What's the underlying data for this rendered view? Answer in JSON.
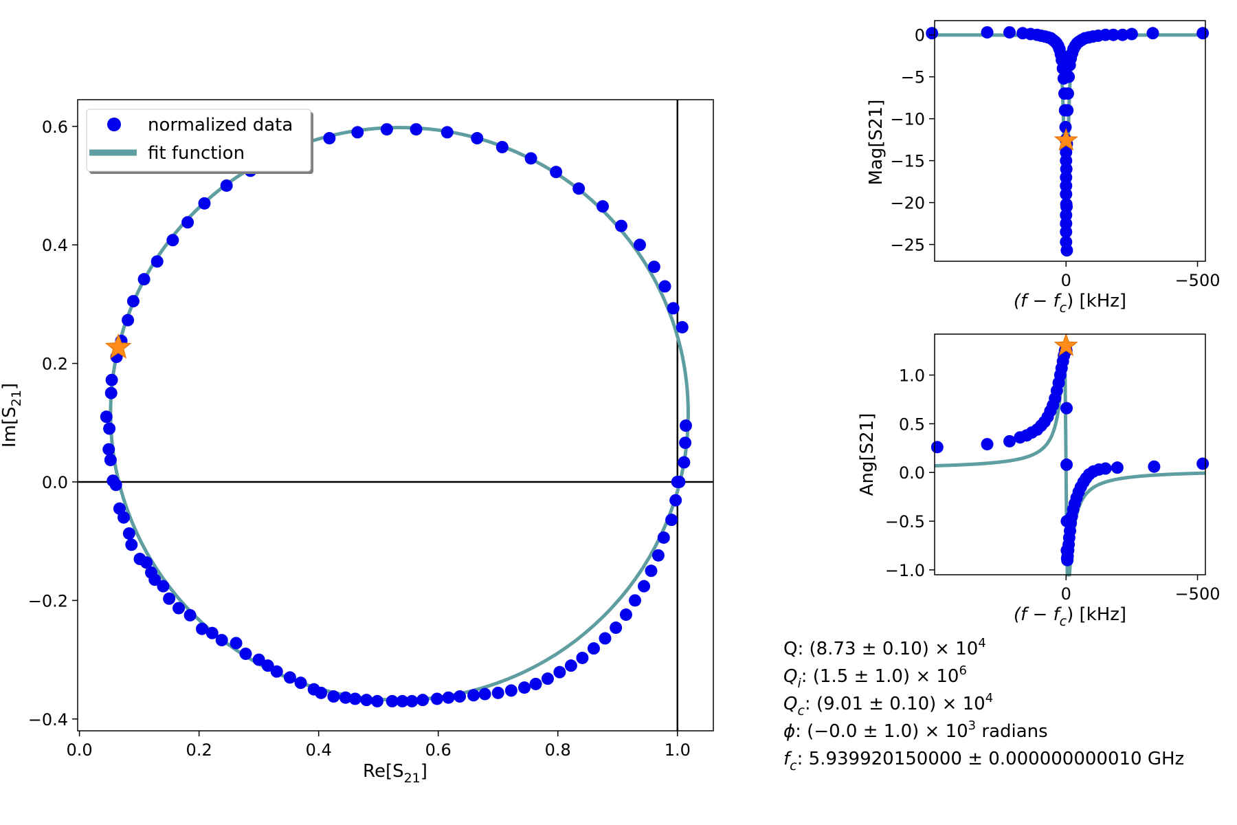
{
  "colors": {
    "data": "#0000ee",
    "fit": "#5f9ea0",
    "marker": "#ff8c1a",
    "axes": "#000000"
  },
  "chart_data": [
    {
      "id": "circle",
      "type": "scatter",
      "xlabel_base": "Re[S",
      "xlabel_sub": "21",
      "xlabel_end": "]",
      "ylabel_base": "Im[S",
      "ylabel_sub": "21",
      "ylabel_end": "]",
      "xlim": [
        -0.003,
        1.06
      ],
      "ylim": [
        -0.42,
        0.645
      ],
      "xticks": [
        0.0,
        0.2,
        0.4,
        0.6,
        0.8,
        1.0
      ],
      "xtick_labels": [
        "0.0",
        "0.2",
        "0.4",
        "0.6",
        "0.8",
        "1.0"
      ],
      "yticks": [
        -0.4,
        -0.2,
        0.0,
        0.2,
        0.4,
        0.6
      ],
      "ytick_labels": [
        "−0.4",
        "−0.2",
        "0.0",
        "0.2",
        "0.4",
        "0.6"
      ],
      "legend": {
        "position": "top-left",
        "entries": [
          "normalized data",
          "fit function"
        ]
      },
      "reference_lines": {
        "x": 1.0,
        "y": 0.0
      },
      "fit_circle": {
        "center": [
          0.535,
          0.115
        ],
        "radius": 0.483
      },
      "star": [
        0.065,
        0.227
      ],
      "series": [
        {
          "name": "normalized data",
          "points": [
            [
              1.0,
              0.0
            ],
            [
              0.997,
              -0.031
            ],
            [
              0.99,
              -0.064
            ],
            [
              0.977,
              -0.094
            ],
            [
              0.968,
              -0.124
            ],
            [
              0.956,
              -0.15
            ],
            [
              0.944,
              -0.176
            ],
            [
              0.929,
              -0.2
            ],
            [
              0.914,
              -0.224
            ],
            [
              0.897,
              -0.246
            ],
            [
              0.879,
              -0.264
            ],
            [
              0.86,
              -0.281
            ],
            [
              0.841,
              -0.297
            ],
            [
              0.822,
              -0.31
            ],
            [
              0.803,
              -0.321
            ],
            [
              0.783,
              -0.332
            ],
            [
              0.763,
              -0.341
            ],
            [
              0.744,
              -0.347
            ],
            [
              0.722,
              -0.352
            ],
            [
              0.7,
              -0.356
            ],
            [
              0.678,
              -0.358
            ],
            [
              0.659,
              -0.36
            ],
            [
              0.636,
              -0.362
            ],
            [
              0.617,
              -0.364
            ],
            [
              0.598,
              -0.366
            ],
            [
              0.574,
              -0.368
            ],
            [
              0.556,
              -0.37
            ],
            [
              0.54,
              -0.37
            ],
            [
              0.523,
              -0.37
            ],
            [
              0.498,
              -0.37
            ],
            [
              0.48,
              -0.368
            ],
            [
              0.461,
              -0.366
            ],
            [
              0.445,
              -0.364
            ],
            [
              0.425,
              -0.362
            ],
            [
              0.404,
              -0.356
            ],
            [
              0.392,
              -0.35
            ],
            [
              0.37,
              -0.339
            ],
            [
              0.352,
              -0.33
            ],
            [
              0.33,
              -0.32
            ],
            [
              0.315,
              -0.31
            ],
            [
              0.3,
              -0.3
            ],
            [
              0.278,
              -0.29
            ],
            [
              0.262,
              -0.272
            ],
            [
              0.238,
              -0.267
            ],
            [
              0.222,
              -0.255
            ],
            [
              0.205,
              -0.248
            ],
            [
              0.185,
              -0.225
            ],
            [
              0.166,
              -0.213
            ],
            [
              0.15,
              -0.197
            ],
            [
              0.14,
              -0.176
            ],
            [
              0.126,
              -0.165
            ],
            [
              0.12,
              -0.153
            ],
            [
              0.112,
              -0.136
            ],
            [
              0.101,
              -0.13
            ],
            [
              0.087,
              -0.106
            ],
            [
              0.083,
              -0.087
            ],
            [
              0.074,
              -0.06
            ],
            [
              0.067,
              -0.045
            ],
            [
              0.061,
              -0.005
            ],
            [
              0.056,
              0.002
            ],
            [
              0.052,
              0.037
            ],
            [
              0.049,
              0.055
            ],
            [
              0.05,
              0.09
            ],
            [
              0.045,
              0.11
            ],
            [
              0.053,
              0.15
            ],
            [
              0.054,
              0.172
            ],
            [
              0.062,
              0.211
            ],
            [
              0.07,
              0.238
            ],
            [
              0.081,
              0.273
            ],
            [
              0.09,
              0.305
            ],
            [
              0.108,
              0.342
            ],
            [
              0.13,
              0.372
            ],
            [
              0.156,
              0.408
            ],
            [
              0.181,
              0.438
            ],
            [
              0.209,
              0.47
            ],
            [
              0.246,
              0.5
            ],
            [
              0.286,
              0.525
            ],
            [
              0.33,
              0.55
            ],
            [
              0.37,
              0.57
            ],
            [
              0.418,
              0.58
            ],
            [
              0.465,
              0.59
            ],
            [
              0.514,
              0.595
            ],
            [
              0.563,
              0.595
            ],
            [
              0.615,
              0.59
            ],
            [
              0.665,
              0.58
            ],
            [
              0.707,
              0.565
            ],
            [
              0.755,
              0.546
            ],
            [
              0.797,
              0.523
            ],
            [
              0.835,
              0.495
            ],
            [
              0.875,
              0.465
            ],
            [
              0.906,
              0.432
            ],
            [
              0.937,
              0.4
            ],
            [
              0.961,
              0.363
            ],
            [
              0.979,
              0.33
            ],
            [
              0.993,
              0.293
            ],
            [
              1.008,
              0.261
            ],
            [
              1.014,
              0.095
            ],
            [
              1.013,
              0.066
            ],
            [
              1.011,
              0.033
            ],
            [
              1.003,
              0.0
            ]
          ]
        },
        {
          "name": "fit function"
        }
      ]
    },
    {
      "id": "mag",
      "type": "line",
      "xlabel": "(f − f",
      "xlabel_sub": "c",
      "xlabel_end": ") [kHz]",
      "ylabel": "Mag[S21]",
      "xlim": [
        500,
        -530
      ],
      "ylim": [
        -27,
        1.7
      ],
      "xticks": [
        0,
        -500
      ],
      "xtick_labels": [
        "0",
        "−500"
      ],
      "yticks": [
        0,
        -5,
        -10,
        -15,
        -20,
        -25
      ],
      "ytick_labels": [
        "0",
        "−5",
        "−10",
        "−15",
        "−20",
        "−25"
      ],
      "fit": {
        "depth": -25.7,
        "hwhm": 8
      },
      "star": [
        0,
        -12.6
      ],
      "points": [
        [
          510,
          0.2
        ],
        [
          300,
          0.3
        ],
        [
          215,
          0.3
        ],
        [
          165,
          0.2
        ],
        [
          135,
          0.1
        ],
        [
          110,
          0
        ],
        [
          95,
          -0.1
        ],
        [
          80,
          -0.2
        ],
        [
          68,
          -0.3
        ],
        [
          58,
          -0.4
        ],
        [
          50,
          -0.6
        ],
        [
          42,
          -0.8
        ],
        [
          36,
          -1
        ],
        [
          30,
          -1.3
        ],
        [
          25,
          -1.7
        ],
        [
          20,
          -2.3
        ],
        [
          16,
          -3
        ],
        [
          12,
          -4
        ],
        [
          9,
          -5.2
        ],
        [
          6,
          -7
        ],
        [
          4,
          -9
        ],
        [
          2,
          -11
        ],
        [
          1,
          -12.5
        ],
        [
          0,
          -14
        ],
        [
          0,
          -15
        ],
        [
          -1,
          -16
        ],
        [
          0,
          -17
        ],
        [
          0,
          -18
        ],
        [
          0,
          -19
        ],
        [
          -1,
          -20.2
        ],
        [
          0,
          -21.5
        ],
        [
          0,
          -22.5
        ],
        [
          0,
          -23.5
        ],
        [
          0,
          -24.7
        ],
        [
          -3,
          -25.7
        ],
        [
          -2,
          -20.5
        ],
        [
          -3,
          -13
        ],
        [
          -5,
          -9
        ],
        [
          -7,
          -7
        ],
        [
          -10,
          -5
        ],
        [
          -14,
          -3.6
        ],
        [
          -18,
          -2.8
        ],
        [
          -23,
          -2.2
        ],
        [
          -28,
          -1.7
        ],
        [
          -35,
          -1.3
        ],
        [
          -42,
          -1
        ],
        [
          -50,
          -0.8
        ],
        [
          -60,
          -0.6
        ],
        [
          -72,
          -0.4
        ],
        [
          -86,
          -0.3
        ],
        [
          -102,
          -0.2
        ],
        [
          -122,
          -0.1
        ],
        [
          -150,
          0
        ],
        [
          -180,
          0
        ],
        [
          -215,
          0
        ],
        [
          -250,
          0.1
        ],
        [
          -330,
          0.2
        ],
        [
          -520,
          0.2
        ]
      ]
    },
    {
      "id": "ang",
      "type": "line",
      "xlabel": "(f − f",
      "xlabel_sub": "c",
      "xlabel_end": ") [kHz]",
      "ylabel": "Ang[S21]",
      "xlim": [
        500,
        -530
      ],
      "ylim": [
        -1.05,
        1.42
      ],
      "xticks": [
        0,
        -500
      ],
      "xtick_labels": [
        "0",
        "−500"
      ],
      "yticks": [
        1.0,
        0.5,
        0.0,
        -0.5,
        -1.0
      ],
      "ytick_labels": [
        "1.0",
        "0.5",
        "0.0",
        "−0.5",
        "−1.0"
      ],
      "fit": {
        "amplitude": 1.05,
        "hwhm": 8,
        "bias": 0.03
      },
      "star": [
        0,
        1.3
      ],
      "points": [
        [
          490,
          0.26
        ],
        [
          300,
          0.29
        ],
        [
          215,
          0.32
        ],
        [
          175,
          0.36
        ],
        [
          150,
          0.38
        ],
        [
          130,
          0.41
        ],
        [
          110,
          0.44
        ],
        [
          95,
          0.48
        ],
        [
          82,
          0.52
        ],
        [
          70,
          0.57
        ],
        [
          60,
          0.63
        ],
        [
          50,
          0.69
        ],
        [
          42,
          0.76
        ],
        [
          35,
          0.84
        ],
        [
          28,
          0.92
        ],
        [
          22,
          1.0
        ],
        [
          17,
          1.07
        ],
        [
          12,
          1.14
        ],
        [
          8,
          1.2
        ],
        [
          4,
          1.25
        ],
        [
          1,
          1.28
        ],
        [
          -1,
          1.25
        ],
        [
          -2,
          0.66
        ],
        [
          -2,
          0.08
        ],
        [
          -3,
          -0.5
        ],
        [
          -3,
          -0.8
        ],
        [
          -4,
          -0.88
        ],
        [
          -5,
          -0.9
        ],
        [
          -6,
          -0.86
        ],
        [
          -8,
          -0.8
        ],
        [
          -10,
          -0.74
        ],
        [
          -12,
          -0.67
        ],
        [
          -15,
          -0.6
        ],
        [
          -18,
          -0.52
        ],
        [
          -22,
          -0.45
        ],
        [
          -27,
          -0.38
        ],
        [
          -33,
          -0.32
        ],
        [
          -40,
          -0.26
        ],
        [
          -48,
          -0.2
        ],
        [
          -56,
          -0.15
        ],
        [
          -66,
          -0.1
        ],
        [
          -76,
          -0.06
        ],
        [
          -88,
          -0.02
        ],
        [
          -104,
          0.01
        ],
        [
          -125,
          0.03
        ],
        [
          -150,
          0.04
        ],
        [
          -195,
          0.05
        ],
        [
          -335,
          0.06
        ],
        [
          -520,
          0.09
        ]
      ]
    }
  ],
  "fit_results": [
    {
      "id": "q",
      "sym": "Q",
      "sub": "",
      "body": ": (8.73 ± 0.10) × 10",
      "sup": "4",
      "tail": ""
    },
    {
      "id": "qi",
      "sym": "Q",
      "sub": "i",
      "body": ": (1.5 ± 1.0) × 10",
      "sup": "6",
      "tail": ""
    },
    {
      "id": "qc",
      "sym": "Q",
      "sub": "c",
      "body": ": (9.01 ± 0.10) × 10",
      "sup": "4",
      "tail": ""
    },
    {
      "id": "phi",
      "sym": "ϕ",
      "sub": "",
      "body": ": (−0.0 ± 1.0) × 10",
      "sup": "3",
      "tail": " radians"
    },
    {
      "id": "fc",
      "sym": "f",
      "sub": "c",
      "body": ": 5.939920150000 ± 0.000000000010 GHz",
      "sup": "",
      "tail": ""
    }
  ]
}
